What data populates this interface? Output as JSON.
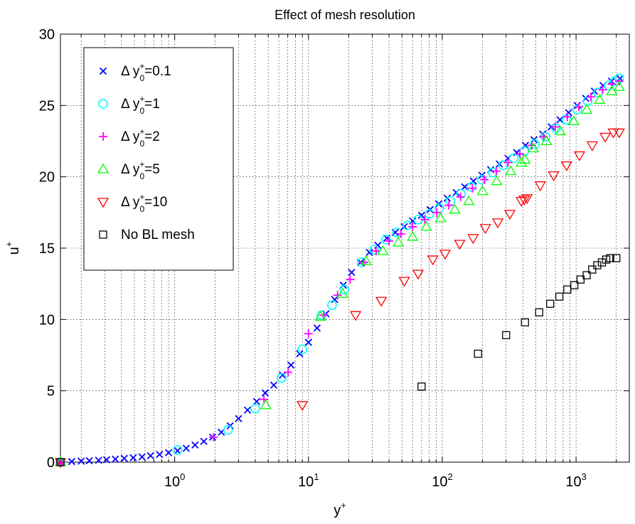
{
  "chart_data": {
    "type": "scatter",
    "title": "Effect of mesh resolution",
    "xlabel": "y",
    "xlabel_sup": "+",
    "ylabel": "u",
    "ylabel_sup": "+",
    "xscale": "log",
    "xlim": [
      0.14,
      2500
    ],
    "ylim": [
      0,
      30
    ],
    "grid": true,
    "legend_position": "top-left",
    "yticks": [
      {
        "value": 0,
        "label": "0"
      },
      {
        "value": 5,
        "label": "5"
      },
      {
        "value": 10,
        "label": "10"
      },
      {
        "value": 15,
        "label": "15"
      },
      {
        "value": 20,
        "label": "20"
      },
      {
        "value": 25,
        "label": "25"
      },
      {
        "value": 30,
        "label": "30"
      }
    ],
    "xticks": [
      {
        "value": 1,
        "base": "10",
        "exp": "0"
      },
      {
        "value": 10,
        "base": "10",
        "exp": "1"
      },
      {
        "value": 100,
        "base": "10",
        "exp": "2"
      },
      {
        "value": 1000,
        "base": "10",
        "exp": "3"
      }
    ],
    "series": [
      {
        "name": "Δ y0+=0.1",
        "legend_text": "Δ y",
        "legend_sup": "+",
        "legend_sub": "0",
        "legend_rest": "=0.1",
        "marker": "x",
        "color": "#0000ff",
        "points": [
          [
            0.14,
            0
          ],
          [
            0.17,
            0.04
          ],
          [
            0.2,
            0.07
          ],
          [
            0.23,
            0.1
          ],
          [
            0.27,
            0.13
          ],
          [
            0.31,
            0.17
          ],
          [
            0.36,
            0.21
          ],
          [
            0.42,
            0.26
          ],
          [
            0.49,
            0.31
          ],
          [
            0.57,
            0.37
          ],
          [
            0.66,
            0.45
          ],
          [
            0.77,
            0.54
          ],
          [
            0.9,
            0.66
          ],
          [
            1.05,
            0.8
          ],
          [
            1.22,
            0.97
          ],
          [
            1.42,
            1.2
          ],
          [
            1.65,
            1.45
          ],
          [
            1.92,
            1.75
          ],
          [
            2.23,
            2.1
          ],
          [
            2.6,
            2.55
          ],
          [
            3.0,
            3.05
          ],
          [
            3.5,
            3.65
          ],
          [
            4.1,
            4.25
          ],
          [
            4.75,
            4.85
          ],
          [
            5.5,
            5.4
          ],
          [
            6.4,
            6.1
          ],
          [
            7.4,
            6.8
          ],
          [
            8.6,
            7.6
          ],
          [
            10.0,
            8.4
          ],
          [
            11.6,
            9.4
          ],
          [
            13.5,
            10.4
          ],
          [
            15.7,
            11.4
          ],
          [
            18.2,
            12.4
          ],
          [
            21.0,
            13.3
          ],
          [
            24.5,
            14.0
          ],
          [
            28.5,
            14.7
          ],
          [
            33,
            15.2
          ],
          [
            38.5,
            15.7
          ],
          [
            44.5,
            16.1
          ],
          [
            52,
            16.5
          ],
          [
            60,
            16.9
          ],
          [
            70,
            17.3
          ],
          [
            81,
            17.7
          ],
          [
            94,
            18.1
          ],
          [
            109,
            18.5
          ],
          [
            127,
            18.9
          ],
          [
            147,
            19.3
          ],
          [
            171,
            19.7
          ],
          [
            198,
            20.1
          ],
          [
            230,
            20.5
          ],
          [
            267,
            20.9
          ],
          [
            310,
            21.3
          ],
          [
            360,
            21.7
          ],
          [
            418,
            22.2
          ],
          [
            485,
            22.6
          ],
          [
            563,
            23.0
          ],
          [
            653,
            23.5
          ],
          [
            758,
            24.0
          ],
          [
            880,
            24.5
          ],
          [
            1020,
            25.0
          ],
          [
            1180,
            25.5
          ],
          [
            1370,
            26.0
          ],
          [
            1590,
            26.4
          ],
          [
            1840,
            26.7
          ],
          [
            2130,
            26.9
          ]
        ]
      },
      {
        "name": "Δ y0+=1",
        "legend_text": "Δ y",
        "legend_sup": "+",
        "legend_sub": "0",
        "legend_rest": "=1",
        "marker": "circle",
        "color": "#00ffff",
        "points": [
          [
            0.14,
            0
          ],
          [
            1.05,
            0.85
          ],
          [
            2.5,
            2.25
          ],
          [
            4.0,
            3.75
          ],
          [
            6.3,
            5.9
          ],
          [
            9.0,
            7.9
          ],
          [
            12.5,
            10.3
          ],
          [
            15.0,
            11.0
          ],
          [
            18.5,
            12.1
          ],
          [
            25,
            14.0
          ],
          [
            31,
            14.9
          ],
          [
            38,
            15.6
          ],
          [
            46,
            16.1
          ],
          [
            55,
            16.6
          ],
          [
            66,
            17.0
          ],
          [
            80,
            17.4
          ],
          [
            95,
            17.8
          ],
          [
            115,
            18.3
          ],
          [
            138,
            18.8
          ],
          [
            165,
            19.3
          ],
          [
            198,
            19.8
          ],
          [
            238,
            20.3
          ],
          [
            285,
            20.8
          ],
          [
            342,
            21.3
          ],
          [
            410,
            21.8
          ],
          [
            492,
            22.3
          ],
          [
            590,
            22.8
          ],
          [
            708,
            23.4
          ],
          [
            850,
            24.0
          ],
          [
            1020,
            24.7
          ],
          [
            1220,
            25.3
          ],
          [
            1460,
            25.9
          ],
          [
            1750,
            26.4
          ],
          [
            1950,
            26.7
          ],
          [
            2100,
            26.9
          ]
        ]
      },
      {
        "name": "Δ y0+=2",
        "legend_text": "Δ y",
        "legend_sup": "+",
        "legend_sub": "0",
        "legend_rest": "=2",
        "marker": "plus",
        "color": "#ff00ff",
        "points": [
          [
            0.14,
            0
          ],
          [
            1.95,
            1.75
          ],
          [
            4.65,
            4.4
          ],
          [
            7.05,
            6.3
          ],
          [
            10.0,
            9.0
          ],
          [
            13.0,
            10.3
          ],
          [
            16.5,
            11.7
          ],
          [
            20.5,
            12.8
          ],
          [
            26,
            14.0
          ],
          [
            32,
            14.8
          ],
          [
            40,
            15.5
          ],
          [
            49,
            16.0
          ],
          [
            60,
            16.5
          ],
          [
            74,
            17.0
          ],
          [
            91,
            17.5
          ],
          [
            112,
            18.0
          ],
          [
            137,
            18.6
          ],
          [
            168,
            19.2
          ],
          [
            206,
            19.8
          ],
          [
            253,
            20.4
          ],
          [
            310,
            21.0
          ],
          [
            380,
            21.6
          ],
          [
            466,
            22.2
          ],
          [
            572,
            22.8
          ],
          [
            700,
            23.5
          ],
          [
            860,
            24.2
          ],
          [
            1050,
            24.9
          ],
          [
            1290,
            25.6
          ],
          [
            1580,
            26.1
          ],
          [
            1850,
            26.5
          ],
          [
            2100,
            26.7
          ]
        ]
      },
      {
        "name": "Δ y0+=5",
        "legend_text": "Δ y",
        "legend_sup": "+",
        "legend_sub": "0",
        "legend_rest": "=5",
        "marker": "triangle-up",
        "color": "#00ff00",
        "points": [
          [
            0.14,
            0
          ],
          [
            4.8,
            4.0
          ],
          [
            12.3,
            10.2
          ],
          [
            18,
            11.8
          ],
          [
            27,
            14.1
          ],
          [
            36,
            14.8
          ],
          [
            47,
            15.4
          ],
          [
            60,
            15.8
          ],
          [
            76,
            16.5
          ],
          [
            97,
            17.1
          ],
          [
            124,
            17.7
          ],
          [
            158,
            18.3
          ],
          [
            200,
            19.0
          ],
          [
            255,
            19.7
          ],
          [
            325,
            20.4
          ],
          [
            390,
            21.0
          ],
          [
            415,
            21.2
          ],
          [
            480,
            22.0
          ],
          [
            600,
            22.5
          ],
          [
            760,
            23.2
          ],
          [
            960,
            23.9
          ],
          [
            1200,
            24.7
          ],
          [
            1500,
            25.4
          ],
          [
            1850,
            26.0
          ],
          [
            2100,
            26.3
          ]
        ]
      },
      {
        "name": "Δ y0+=10",
        "legend_text": "Δ y",
        "legend_sup": "+",
        "legend_sub": "0",
        "legend_rest": "=10",
        "marker": "triangle-down",
        "color": "#ff0000",
        "points": [
          [
            0.14,
            0
          ],
          [
            9.0,
            4.0
          ],
          [
            22.5,
            10.3
          ],
          [
            35,
            11.3
          ],
          [
            52,
            12.7
          ],
          [
            66,
            13.2
          ],
          [
            85,
            14.2
          ],
          [
            105,
            14.6
          ],
          [
            135,
            15.3
          ],
          [
            170,
            15.7
          ],
          [
            210,
            16.4
          ],
          [
            260,
            16.8
          ],
          [
            320,
            17.4
          ],
          [
            390,
            18.3
          ],
          [
            410,
            18.4
          ],
          [
            430,
            18.5
          ],
          [
            540,
            19.4
          ],
          [
            680,
            20.1
          ],
          [
            850,
            20.8
          ],
          [
            1060,
            21.5
          ],
          [
            1320,
            22.2
          ],
          [
            1650,
            22.8
          ],
          [
            1900,
            23.1
          ],
          [
            2100,
            23.1
          ]
        ]
      },
      {
        "name": "No BL mesh",
        "legend_text": "No BL mesh",
        "legend_sup": "",
        "legend_sub": "",
        "legend_rest": "",
        "marker": "square",
        "color": "#000000",
        "points": [
          [
            0.14,
            0
          ],
          [
            70,
            5.3
          ],
          [
            185,
            7.6
          ],
          [
            300,
            8.9
          ],
          [
            415,
            9.8
          ],
          [
            530,
            10.5
          ],
          [
            640,
            11.1
          ],
          [
            750,
            11.6
          ],
          [
            860,
            12.1
          ],
          [
            970,
            12.4
          ],
          [
            1080,
            12.8
          ],
          [
            1200,
            13.1
          ],
          [
            1320,
            13.5
          ],
          [
            1440,
            13.8
          ],
          [
            1560,
            14.0
          ],
          [
            1680,
            14.2
          ],
          [
            1800,
            14.3
          ],
          [
            2000,
            14.3
          ]
        ]
      }
    ]
  }
}
